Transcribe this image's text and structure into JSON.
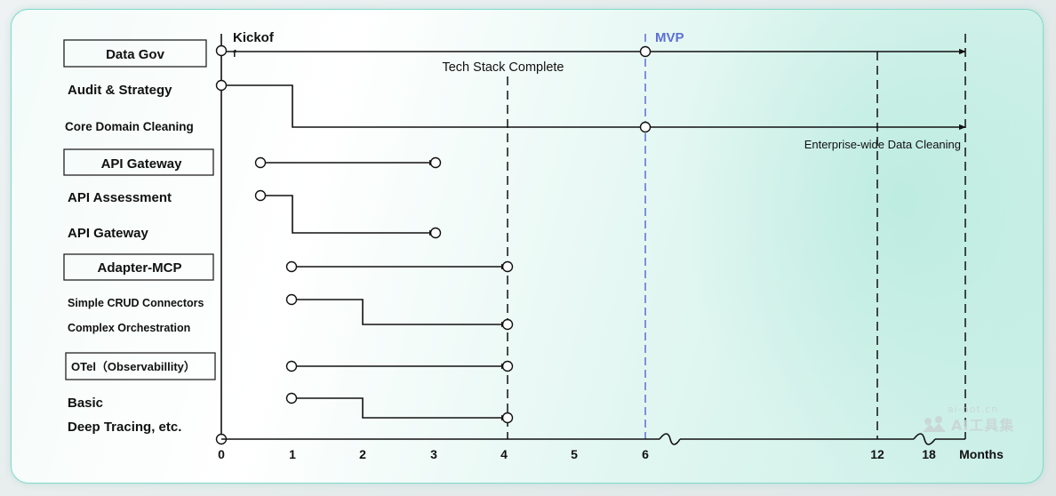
{
  "labels": {
    "data_gov": "Data Gov",
    "audit": "Audit & Strategy",
    "core_cleaning": "Core Domain Cleaning",
    "api_gateway_header": "API Gateway",
    "api_assessment": "API Assessment",
    "api_gateway": "API Gateway",
    "adapter_mcp": "Adapter-MCP",
    "crud": "Simple CRUD Connectors",
    "orchestration": "Complex Orchestration",
    "otel": "OTel（Observabillity）",
    "basic": "Basic",
    "deep_tracing": "Deep  Tracing, etc."
  },
  "annotations": {
    "kickoff_line1": "Kickof",
    "kickoff_line2": "f",
    "mvp": "MVP",
    "tech_stack": "Tech Stack Complete",
    "enterprise": "Enterprise-wide Data Cleaning"
  },
  "axis": {
    "ticks": [
      "0",
      "1",
      "2",
      "3",
      "4",
      "5",
      "6",
      "12",
      "18"
    ],
    "unit": "Months"
  },
  "watermark": {
    "url": "ai-bot.cn",
    "name": "AI工具集"
  },
  "colors": {
    "line": "#111111",
    "mvp": "#5b6fd6",
    "box_border": "#222222"
  }
}
